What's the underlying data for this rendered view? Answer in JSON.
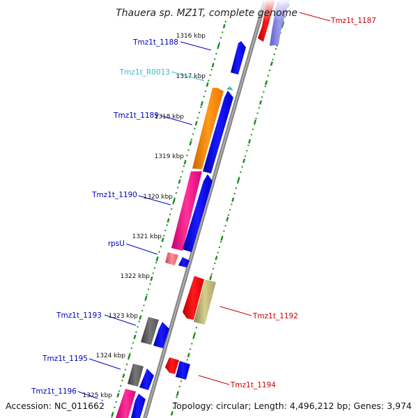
{
  "title": "Thauera sp. MZ1T, complete genome",
  "accession": "Accession: NC_011662",
  "summary": "Topology: circular; Length: 4,496,212 bp; Genes: 3,974",
  "colors": {
    "backbone": "#808080",
    "tick_dot": "#1a8a1a",
    "label_blue": "#0000bb",
    "label_red": "#cc0000",
    "label_cyan": "#33bbcc"
  },
  "scale_ticks": [
    "1316 kbp",
    "1317 kbp",
    "1318 kbp",
    "1319 kbp",
    "1320 kbp",
    "1321 kbp",
    "1322 kbp",
    "1323 kbp",
    "1324 kbp",
    "1325 kbp"
  ],
  "labels": {
    "tmz1t_1187": "Tmz1t_1187",
    "tmz1t_1188": "Tmz1t_1188",
    "tmz1t_r0013": "Tmz1t_R0013",
    "tmz1t_1189": "Tmz1t_1189",
    "tmz1t_1190": "Tmz1t_1190",
    "rpsu": "rpsU",
    "tmz1t_1192": "Tmz1t_1192",
    "tmz1t_1193": "Tmz1t_1193",
    "tmz1t_1194": "Tmz1t_1194",
    "tmz1t_1195": "Tmz1t_1195",
    "tmz1t_1196": "Tmz1t_1196"
  }
}
